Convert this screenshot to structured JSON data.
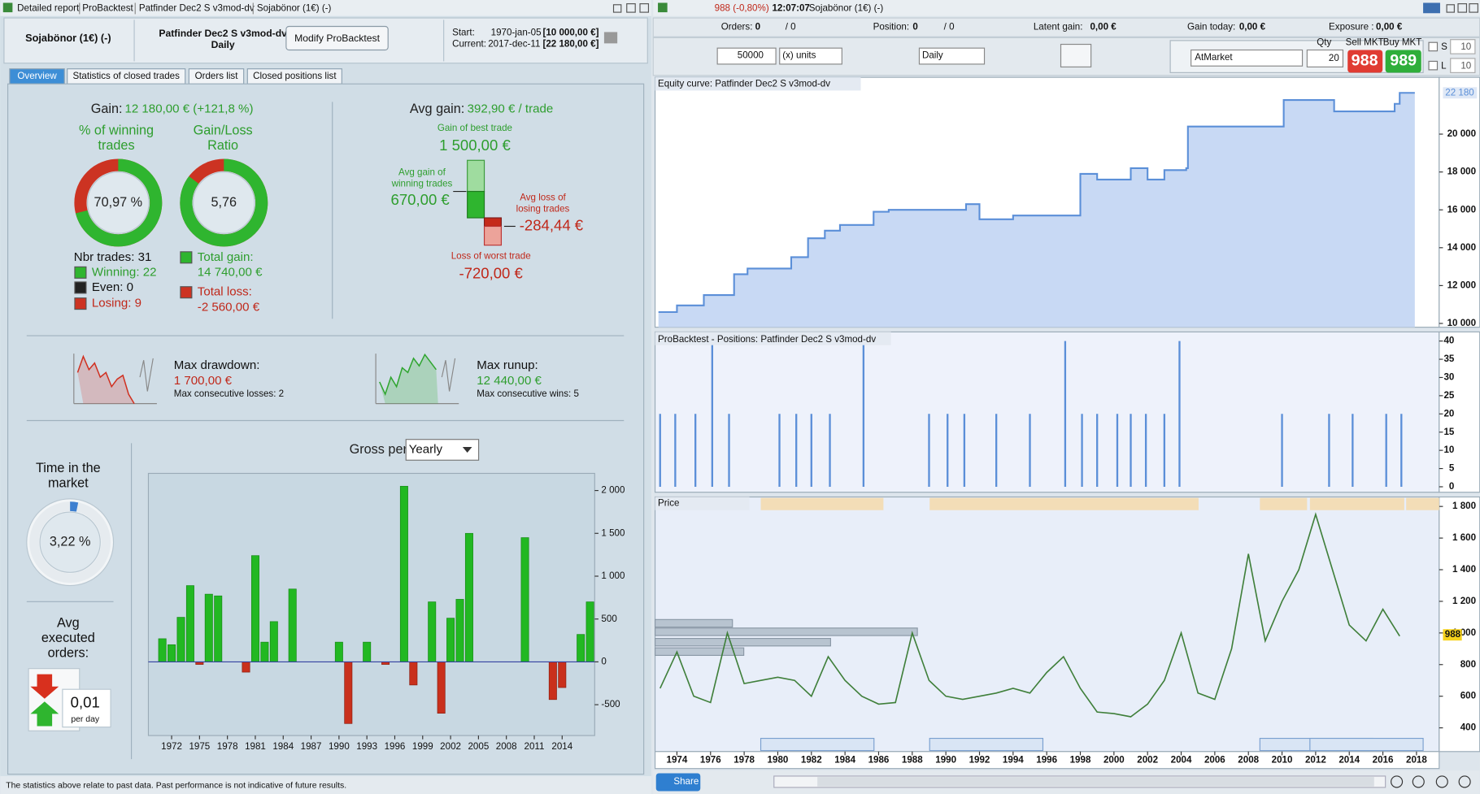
{
  "left_window": {
    "title_tabs": [
      "Detailed report",
      "ProBacktest",
      "Patfinder Dec2 S v3mod-dv",
      "Sojabönor (1€) (-)"
    ],
    "header": {
      "instrument": "Sojabönor (1€) (-)",
      "system": "Patfinder Dec2 S v3mod-dv",
      "timeframe": "Daily",
      "button": "Modify ProBacktest",
      "start_label": "Start:",
      "start_date": "1970-jan-05",
      "start_capital": "[10 000,00 €]",
      "current_label": "Current:",
      "current_date": "2017-dec-11",
      "current_capital": "[22 180,00 €]"
    },
    "tabs": [
      "Overview",
      "Statistics of closed trades",
      "Orders list",
      "Closed positions list"
    ],
    "gain": {
      "label": "Gain:",
      "value": "12 180,00 € (+121,8 %)"
    },
    "winning_ring": {
      "title": [
        "% of winning",
        "trades"
      ],
      "value": 70.97,
      "value_label": "70,97 %"
    },
    "ratio_ring": {
      "title": [
        "Gain/Loss",
        "Ratio"
      ],
      "value": 5.76,
      "value_label": "5,76"
    },
    "trades": {
      "total": "Nbr trades: 31",
      "winning": "Winning: 22",
      "even": "Even: 0",
      "losing": "Losing: 9"
    },
    "totals": {
      "gain_label": "Total gain:",
      "gain": "14 740,00 €",
      "loss_label": "Total loss:",
      "loss": "-2 560,00 €"
    },
    "avg": {
      "label": "Avg gain:",
      "value": "392,90 € / trade",
      "best_label": "Gain of best trade",
      "best": "1 500,00 €",
      "avg_win_label": [
        "Avg gain of",
        "winning trades"
      ],
      "avg_win": "670,00 €",
      "avg_loss_label": [
        "Avg loss of",
        "losing trades"
      ],
      "avg_loss": "-284,44 €",
      "worst_label": "Loss of worst trade",
      "worst": "-720,00 €"
    },
    "drawdown": {
      "label": "Max drawdown:",
      "value": "1 700,00 €",
      "sub": "Max consecutive losses: 2"
    },
    "runup": {
      "label": "Max runup:",
      "value": "12 440,00 €",
      "sub": "Max consecutive wins: 5"
    },
    "time_ring": {
      "title": [
        "Time in the",
        "market"
      ],
      "value": 3.22,
      "value_label": "3,22 %"
    },
    "orders": {
      "title": [
        "Avg",
        "executed",
        "orders:"
      ],
      "value": "0,01",
      "unit": "per day"
    },
    "gross": {
      "type": "bar",
      "title": "Gross performance",
      "period": "Yearly",
      "x": [
        1971,
        1972,
        1973,
        1974,
        1975,
        1976,
        1977,
        1980,
        1981,
        1982,
        1983,
        1985,
        1990,
        1991,
        1993,
        1995,
        1997,
        1998,
        2000,
        2001,
        2002,
        2003,
        2004,
        2010,
        2013,
        2014,
        2016,
        2017
      ],
      "values": [
        270,
        200,
        520,
        890,
        -30,
        790,
        770,
        -120,
        1240,
        230,
        470,
        850,
        230,
        -720,
        230,
        -30,
        2050,
        -270,
        700,
        -600,
        510,
        730,
        1500,
        1450,
        -440,
        -300,
        320,
        700
      ],
      "positive_color": "#22b822",
      "negative_color": "#c9301c",
      "xlim": [
        1969.5,
        2017.5
      ],
      "xticks": [
        1972,
        1975,
        1978,
        1981,
        1984,
        1987,
        1990,
        1993,
        1996,
        1999,
        2002,
        2005,
        2008,
        2011,
        2014
      ],
      "ylim": [
        -860,
        2200
      ],
      "yticks": [
        -500,
        0,
        500,
        {
          "value": 1000,
          "label": "1 000"
        },
        {
          "value": 1500,
          "label": "1 500"
        },
        {
          "value": 2000,
          "label": "2 000"
        }
      ]
    },
    "footer": "The statistics above relate to past data. Past performance is not indicative of future results."
  },
  "right_window": {
    "quote": "988 (-0,80%)",
    "time": "12:07:07",
    "instrument": "Sojabönor (1€) (-)",
    "status": {
      "orders_label": "Orders:",
      "orders": "0",
      "orders_total": "/ 0",
      "position_label": "Position:",
      "position": "0",
      "position_total": "/ 0",
      "latent_label": "Latent gain:",
      "latent": "0,00 €",
      "today_label": "Gain today:",
      "today": "0,00 €",
      "exposure_label": "Exposure :",
      "exposure": "0,00 €"
    },
    "toolbar": {
      "size": "50000",
      "units": "(x) units",
      "timeframe": "Daily",
      "order_type": "AtMarket",
      "qty_label": "Qty",
      "qty": "20",
      "sell_label": "Sell MKT",
      "sell": "988",
      "buy_label": "Buy MKT",
      "buy": "989",
      "s_label": "S",
      "s_value": "10",
      "l_label": "L",
      "l_value": "10"
    },
    "time_axis": {
      "xlim": [
        1972.7,
        2019.35
      ],
      "xticks": [
        1974,
        1976,
        1978,
        1980,
        1982,
        1984,
        1986,
        1988,
        1990,
        1992,
        1994,
        1996,
        1998,
        2000,
        2002,
        2004,
        2006,
        2008,
        2010,
        2012,
        2014,
        2016,
        2018
      ]
    },
    "equity": {
      "type": "line",
      "title": "Equity curve: Patfinder Dec2 S v3mod-dv",
      "color": "#5b8fd8",
      "fill": "#c8d9f4",
      "x": [
        1972.9,
        1974.0,
        1975.6,
        1977.4,
        1978.2,
        1980.8,
        1981.8,
        1982.8,
        1983.7,
        1985.7,
        1986.6,
        1991.2,
        1992.0,
        1994.0,
        1996.0,
        1998.0,
        1999.0,
        2001.0,
        2002.0,
        2003.0,
        2004.3,
        2004.4,
        2010.0,
        2010.1,
        2013.0,
        2013.1,
        2016.0,
        2016.7,
        2017.0
      ],
      "values": [
        10600,
        10950,
        11500,
        12600,
        12900,
        13500,
        14500,
        14900,
        15200,
        15900,
        16000,
        16300,
        15500,
        15700,
        15700,
        17900,
        17600,
        18200,
        17600,
        18100,
        18200,
        20400,
        20400,
        21800,
        21800,
        21200,
        21200,
        21600,
        22180
      ],
      "ylim": [
        9800,
        23000
      ],
      "yticks": [
        {
          "value": 10000,
          "label": "10 000"
        },
        {
          "value": 12000,
          "label": "12 000"
        },
        {
          "value": 14000,
          "label": "14 000"
        },
        {
          "value": 16000,
          "label": "16 000"
        },
        {
          "value": 18000,
          "label": "18 000"
        },
        {
          "value": 20000,
          "label": "20 000"
        }
      ],
      "last": {
        "value": 22180,
        "label": "22 180"
      }
    },
    "positions": {
      "type": "bar",
      "title": "ProBacktest - Positions: Patfinder Dec2 S v3mod-dv",
      "color": "#5b8fd8",
      "x": [
        1973.0,
        1973.9,
        1975.1,
        1976.1,
        1977.1,
        1980.1,
        1981.1,
        1982.0,
        1983.1,
        1985.1,
        1989.0,
        1990.1,
        1991.1,
        1993.0,
        1995.0,
        1997.1,
        1998.1,
        1999.0,
        2000.2,
        2001.0,
        2001.9,
        2003.0,
        2003.9,
        2010.0,
        2012.8,
        2014.2,
        2016.2,
        2017.1
      ],
      "values": [
        20,
        20,
        20,
        40,
        20,
        20,
        20,
        20,
        20,
        40,
        20,
        20,
        20,
        20,
        20,
        40,
        20,
        20,
        20,
        20,
        20,
        20,
        40,
        20,
        20,
        20,
        20,
        20
      ],
      "ylim": [
        -1.5,
        42.5
      ],
      "yticks": [
        0,
        5,
        10,
        15,
        20,
        25,
        30,
        35,
        40
      ]
    },
    "price": {
      "type": "line",
      "title": "Price",
      "color": "#3f7f3a",
      "x": [
        1973,
        1974,
        1975,
        1976,
        1977,
        1978,
        1979,
        1980,
        1981,
        1982,
        1983,
        1984,
        1985,
        1986,
        1987,
        1988,
        1989,
        1990,
        1991,
        1992,
        1993,
        1994,
        1995,
        1996,
        1997,
        1998,
        1999,
        2000,
        2001,
        2002,
        2003,
        2004,
        2005,
        2006,
        2007,
        2008,
        2009,
        2010,
        2011,
        2012,
        2013,
        2014,
        2015,
        2016,
        2017
      ],
      "values": [
        650,
        880,
        600,
        560,
        1000,
        680,
        700,
        720,
        700,
        600,
        850,
        700,
        600,
        550,
        560,
        1000,
        700,
        600,
        580,
        600,
        620,
        650,
        620,
        750,
        850,
        650,
        500,
        490,
        470,
        550,
        700,
        1000,
        620,
        580,
        900,
        1500,
        950,
        1200,
        1400,
        1750,
        1400,
        1050,
        950,
        1150,
        980
      ],
      "ylim": [
        250,
        1860
      ],
      "yticks": [
        400,
        600,
        800,
        {
          "value": 1000,
          "label": "1 000"
        },
        {
          "value": 1200,
          "label": "1 200"
        },
        {
          "value": 1400,
          "label": "1 400"
        },
        {
          "value": 1600,
          "label": "1 600"
        },
        {
          "value": 1800,
          "label": "1 800"
        }
      ],
      "last": {
        "value": 988,
        "label": "988"
      }
    },
    "share": "Share"
  }
}
